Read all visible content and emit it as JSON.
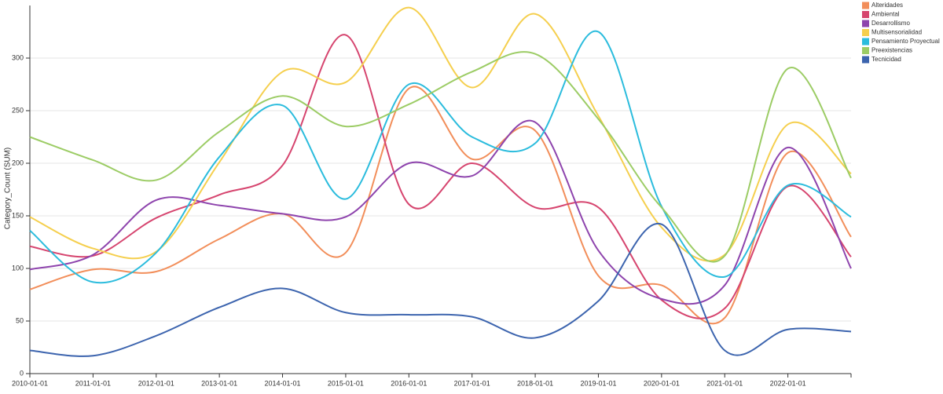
{
  "chart_data": {
    "type": "line",
    "y_label": "Category_Count (SUM)",
    "categories": [
      "2010-01-01",
      "2011-01-01",
      "2012-01-01",
      "2013-01-01",
      "2014-01-01",
      "2015-01-01",
      "2016-01-01",
      "2017-01-01",
      "2018-01-01",
      "2019-01-01",
      "2020-01-01",
      "2021-01-01",
      "2022-01-01",
      null
    ],
    "ylim": [
      0,
      350
    ],
    "yticks": [
      0,
      50,
      100,
      150,
      200,
      250,
      300
    ],
    "grid": true,
    "legend": "top-right",
    "series": [
      {
        "name": "Alteridades",
        "color": "#f28e5a",
        "values": [
          80,
          99,
          97,
          128,
          152,
          115,
          271,
          204,
          231,
          93,
          84,
          53,
          210,
          130
        ]
      },
      {
        "name": "Ambiental",
        "color": "#d6456f",
        "values": [
          121,
          112,
          148,
          170,
          198,
          322,
          161,
          200,
          158,
          158,
          70,
          62,
          178,
          111
        ]
      },
      {
        "name": "Desarrollismo",
        "color": "#8e44ad",
        "values": [
          99,
          113,
          165,
          160,
          152,
          149,
          200,
          188,
          239,
          117,
          71,
          84,
          215,
          100
        ]
      },
      {
        "name": "Multisensorialidad",
        "color": "#f5cf4e",
        "values": [
          149,
          119,
          116,
          201,
          287,
          277,
          348,
          272,
          342,
          245,
          139,
          113,
          237,
          190
        ]
      },
      {
        "name": "Pensamiento Proyectual",
        "color": "#2bbcdd",
        "values": [
          136,
          87,
          115,
          206,
          255,
          166,
          275,
          225,
          219,
          325,
          159,
          92,
          179,
          149
        ]
      },
      {
        "name": "Preexistencias",
        "color": "#9ccc65",
        "values": [
          225,
          203,
          184,
          230,
          264,
          235,
          256,
          287,
          304,
          242,
          158,
          112,
          290,
          186
        ]
      },
      {
        "name": "Tecnicidad",
        "color": "#3c64ae",
        "values": [
          22,
          17,
          36,
          63,
          81,
          58,
          56,
          54,
          34,
          69,
          142,
          22,
          42,
          40
        ]
      }
    ]
  }
}
